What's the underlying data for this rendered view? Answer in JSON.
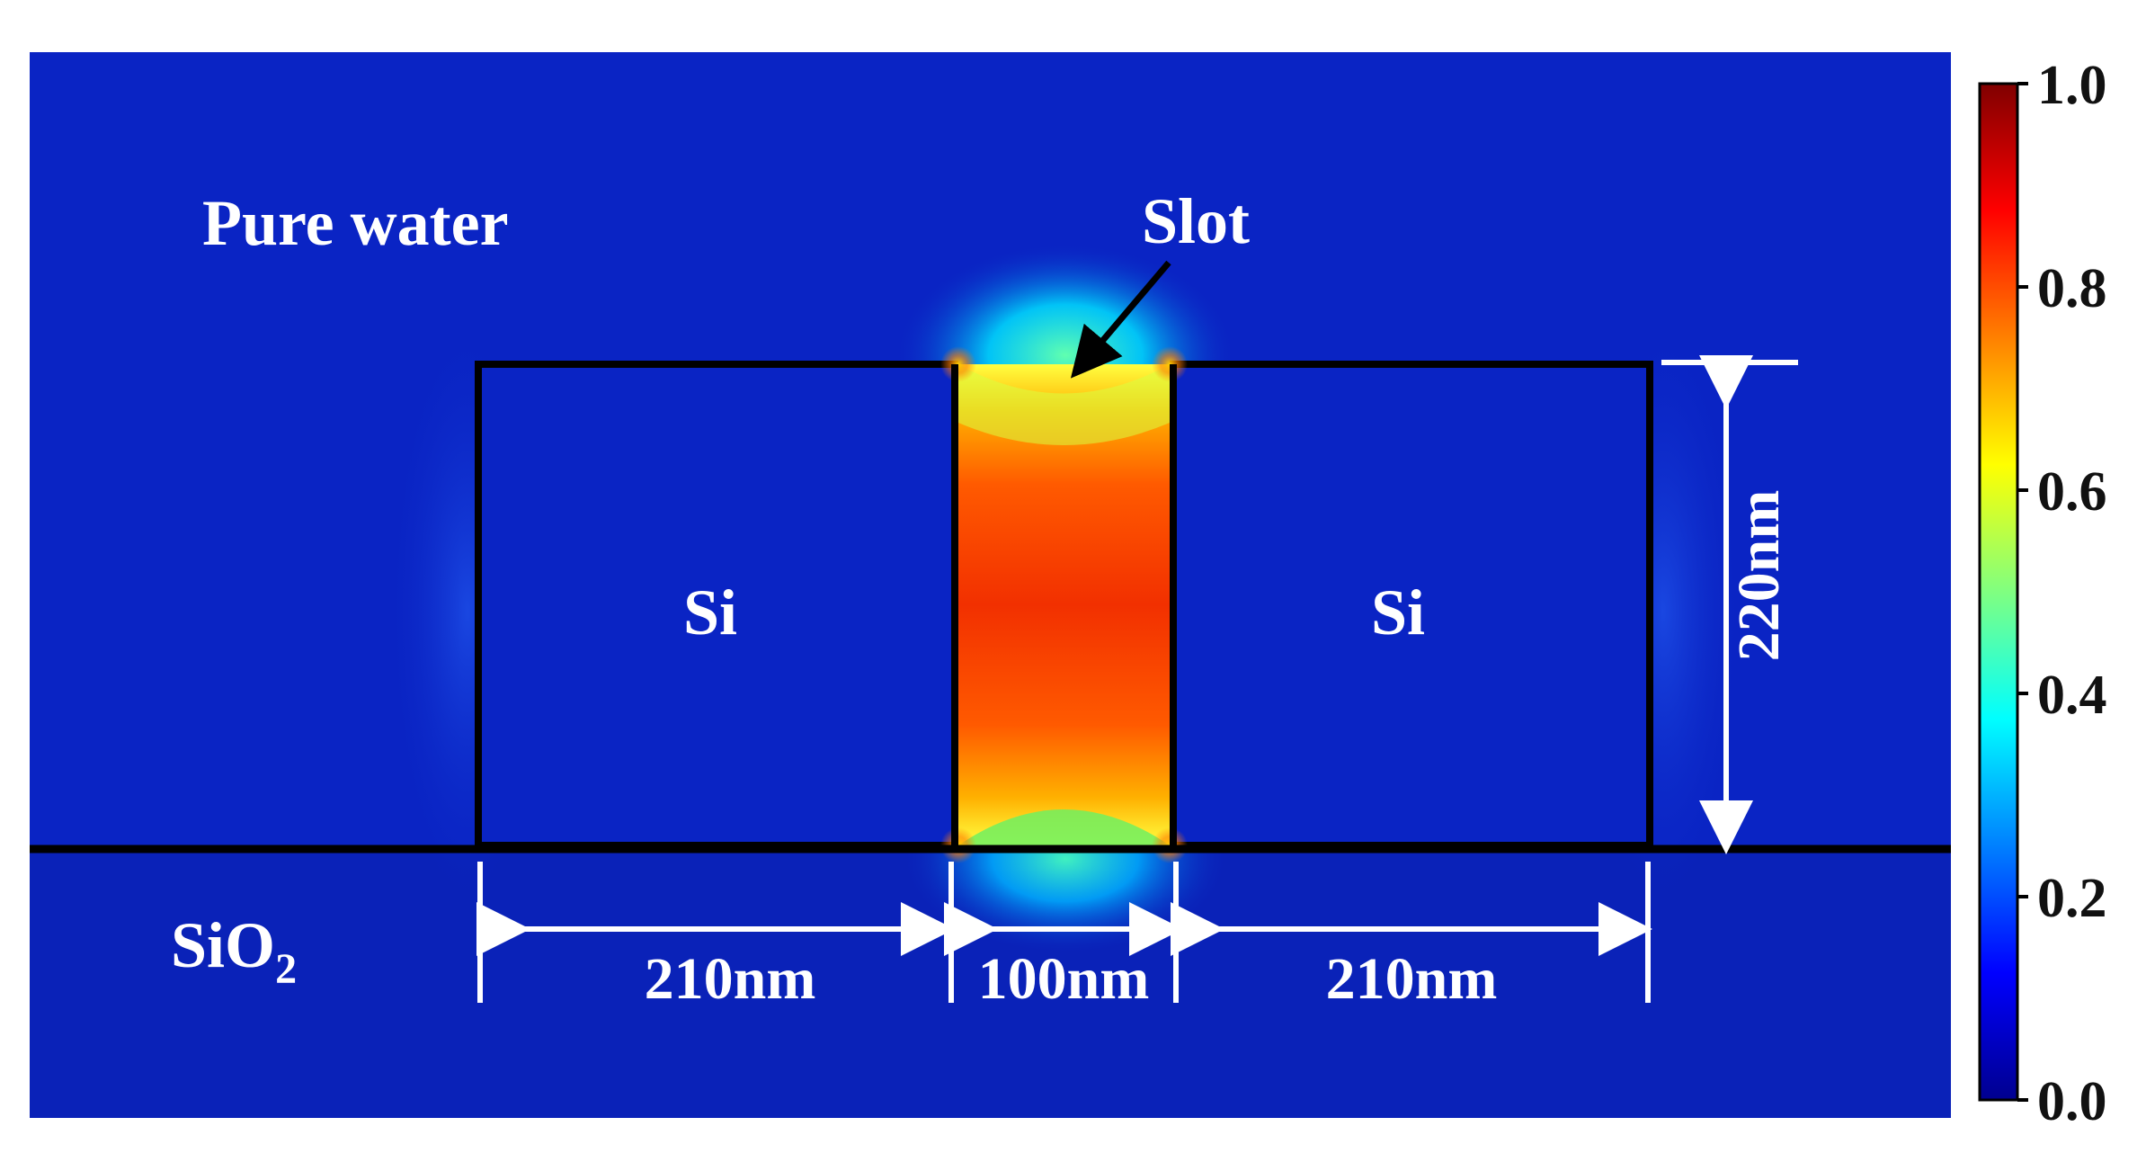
{
  "labels": {
    "medium_top": "Pure water",
    "medium_bottom_base": "SiO",
    "medium_bottom_sub": "2",
    "slot": "Slot",
    "rail_left": "Si",
    "rail_right": "Si"
  },
  "dimensions": {
    "rail_left_width": "210nm",
    "slot_width": "100nm",
    "rail_right_width": "210nm",
    "height": "220nm"
  },
  "colorbar": {
    "min": 0.0,
    "max": 1.0,
    "ticks": [
      "1.0",
      "0.8",
      "0.6",
      "0.4",
      "0.2",
      "0.0"
    ],
    "colormap": "jet",
    "stops": [
      "#00008f",
      "#0000ff",
      "#0080ff",
      "#00ffff",
      "#80ff80",
      "#ffff00",
      "#ff8000",
      "#ff0000",
      "#800000"
    ]
  },
  "colors": {
    "background_field": "#0a24c4",
    "structure_outline": "#000000",
    "annotation": "#ffffff"
  }
}
